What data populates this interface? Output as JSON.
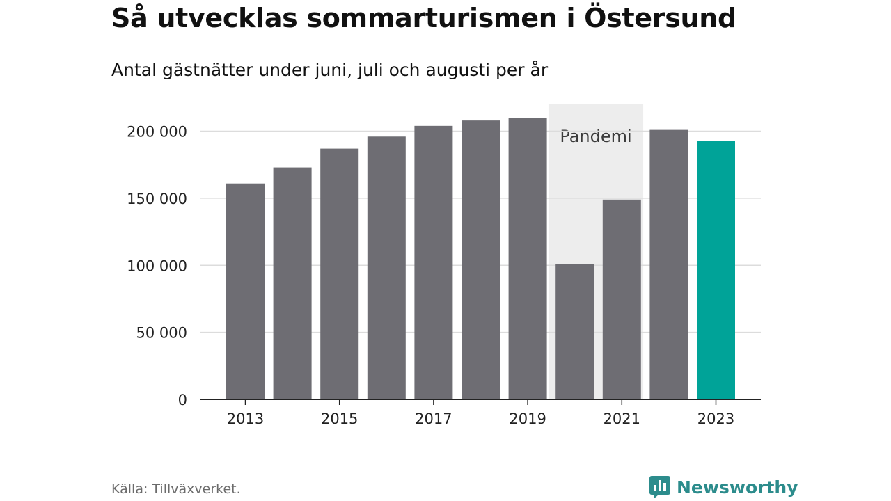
{
  "title": "Så utvecklas sommarturismen i Östersund",
  "subtitle": "Antal gästnätter under juni, juli och augusti per år",
  "source": "Källa: Tillväxverket.",
  "brand": {
    "name": "Newsworthy",
    "icon": "newsworthy-logo-icon",
    "color": "#2c8c8c"
  },
  "colors": {
    "bar": "#6e6d73",
    "highlight": "#00a398",
    "shade": "#ededed",
    "grid": "#dcdcdc",
    "axis": "#222222"
  },
  "chart_data": {
    "type": "bar",
    "title": "Så utvecklas sommarturismen i Östersund",
    "subtitle": "Antal gästnätter under juni, juli och augusti per år",
    "categories": [
      "2013",
      "2014",
      "2015",
      "2016",
      "2017",
      "2018",
      "2019",
      "2020",
      "2021",
      "2022",
      "2023"
    ],
    "values": [
      161000,
      173000,
      187000,
      196000,
      204000,
      208000,
      210000,
      101000,
      149000,
      201000,
      193000
    ],
    "highlight_category": "2023",
    "x_tick_labels": [
      "2013",
      "2015",
      "2017",
      "2019",
      "2021",
      "2023"
    ],
    "y_ticks": [
      0,
      50000,
      100000,
      150000,
      200000
    ],
    "y_tick_labels": [
      "0",
      "50 000",
      "100 000",
      "150 000",
      "200 000"
    ],
    "ylim": [
      0,
      220000
    ],
    "xlabel": "",
    "ylabel": "",
    "grid": true,
    "annotation": {
      "label": "Pandemi",
      "from": "2020",
      "to": "2021"
    }
  }
}
